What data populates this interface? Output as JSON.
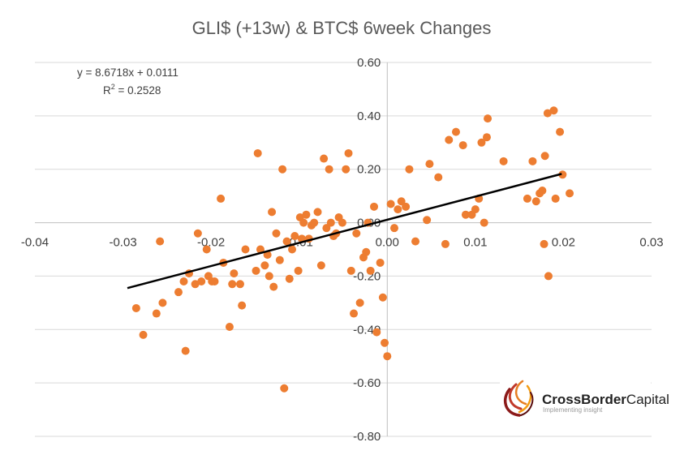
{
  "chart_data": {
    "type": "scatter",
    "title": "GLI$ (+13w) & BTC$ 6week Changes",
    "xlabel": "",
    "ylabel": "",
    "xlim": [
      -0.04,
      0.03
    ],
    "ylim": [
      -0.8,
      0.6
    ],
    "x_ticks": [
      "-0.04",
      "-0.03",
      "-0.02",
      "-0.01",
      "0.00",
      "0.01",
      "0.02",
      "0.03"
    ],
    "y_ticks": [
      "-0.80",
      "-0.60",
      "-0.40",
      "-0.20",
      "0.00",
      "0.20",
      "0.40",
      "0.60"
    ],
    "grid": "horizontal",
    "marker_color": "#ED7D31",
    "trendline_color": "#000000",
    "trendline": {
      "type": "linear",
      "slope": 8.6718,
      "intercept": 0.0111,
      "x_range": [
        -0.0295,
        0.0198
      ],
      "equation_label": "y = 8.6718x + 0.0111",
      "r2_label_prefix": "R",
      "r2_label_sup": "2",
      "r2_label_suffix": " = 0.2528"
    },
    "points": [
      [
        -0.0285,
        -0.32
      ],
      [
        -0.0277,
        -0.42
      ],
      [
        -0.0262,
        -0.34
      ],
      [
        -0.0255,
        -0.3
      ],
      [
        -0.0258,
        -0.07
      ],
      [
        -0.0237,
        -0.26
      ],
      [
        -0.0231,
        -0.22
      ],
      [
        -0.0229,
        -0.48
      ],
      [
        -0.0225,
        -0.19
      ],
      [
        -0.0218,
        -0.23
      ],
      [
        -0.0215,
        -0.04
      ],
      [
        -0.0211,
        -0.22
      ],
      [
        -0.0205,
        -0.1
      ],
      [
        -0.0203,
        -0.2
      ],
      [
        -0.0199,
        -0.22
      ],
      [
        -0.0196,
        -0.22
      ],
      [
        -0.0189,
        0.09
      ],
      [
        -0.0186,
        -0.15
      ],
      [
        -0.0179,
        -0.39
      ],
      [
        -0.0176,
        -0.23
      ],
      [
        -0.0174,
        -0.19
      ],
      [
        -0.0167,
        -0.23
      ],
      [
        -0.0165,
        -0.31
      ],
      [
        -0.0161,
        -0.1
      ],
      [
        -0.0149,
        -0.18
      ],
      [
        -0.0147,
        0.26
      ],
      [
        -0.0144,
        -0.1
      ],
      [
        -0.0139,
        -0.16
      ],
      [
        -0.0136,
        -0.12
      ],
      [
        -0.0134,
        -0.2
      ],
      [
        -0.0131,
        0.04
      ],
      [
        -0.0129,
        -0.24
      ],
      [
        -0.0126,
        -0.04
      ],
      [
        -0.0122,
        -0.14
      ],
      [
        -0.0119,
        0.2
      ],
      [
        -0.0117,
        -0.62
      ],
      [
        -0.0114,
        -0.07
      ],
      [
        -0.0111,
        -0.21
      ],
      [
        -0.0108,
        -0.1
      ],
      [
        -0.0105,
        -0.05
      ],
      [
        -0.0101,
        -0.18
      ],
      [
        -0.0099,
        0.02
      ],
      [
        -0.0097,
        -0.06
      ],
      [
        -0.0095,
        0.0
      ],
      [
        -0.0092,
        0.03
      ],
      [
        -0.0089,
        -0.06
      ],
      [
        -0.0086,
        -0.01
      ],
      [
        -0.0083,
        0.0
      ],
      [
        -0.0079,
        0.04
      ],
      [
        -0.0075,
        -0.16
      ],
      [
        -0.0072,
        0.24
      ],
      [
        -0.0069,
        -0.02
      ],
      [
        -0.0066,
        0.2
      ],
      [
        -0.0064,
        0.0
      ],
      [
        -0.0061,
        -0.05
      ],
      [
        -0.0058,
        -0.04
      ],
      [
        -0.0055,
        0.02
      ],
      [
        -0.0051,
        0.0
      ],
      [
        -0.0047,
        0.2
      ],
      [
        -0.0044,
        0.26
      ],
      [
        -0.0041,
        -0.18
      ],
      [
        -0.0038,
        -0.34
      ],
      [
        -0.0035,
        -0.04
      ],
      [
        -0.0031,
        -0.3
      ],
      [
        -0.0027,
        -0.13
      ],
      [
        -0.0024,
        -0.11
      ],
      [
        -0.0022,
        0.0
      ],
      [
        -0.0019,
        -0.18
      ],
      [
        -0.0015,
        0.06
      ],
      [
        -0.0012,
        -0.41
      ],
      [
        -0.0008,
        -0.15
      ],
      [
        -0.0005,
        -0.28
      ],
      [
        -0.0003,
        -0.45
      ],
      [
        0.0,
        -0.5
      ],
      [
        0.0004,
        0.07
      ],
      [
        0.0008,
        -0.02
      ],
      [
        0.0012,
        0.05
      ],
      [
        0.0016,
        0.08
      ],
      [
        0.0021,
        0.06
      ],
      [
        0.0025,
        0.2
      ],
      [
        0.0032,
        -0.07
      ],
      [
        0.0045,
        0.01
      ],
      [
        0.0048,
        0.22
      ],
      [
        0.0058,
        0.17
      ],
      [
        0.0066,
        -0.08
      ],
      [
        0.007,
        0.31
      ],
      [
        0.0078,
        0.34
      ],
      [
        0.0086,
        0.29
      ],
      [
        0.0089,
        0.03
      ],
      [
        0.0096,
        0.03
      ],
      [
        0.01,
        0.05
      ],
      [
        0.0104,
        0.09
      ],
      [
        0.0107,
        0.3
      ],
      [
        0.011,
        0.0
      ],
      [
        0.0113,
        0.32
      ],
      [
        0.0114,
        0.39
      ],
      [
        0.0132,
        0.23
      ],
      [
        0.0159,
        0.09
      ],
      [
        0.0165,
        0.23
      ],
      [
        0.0169,
        0.08
      ],
      [
        0.0173,
        0.11
      ],
      [
        0.0176,
        0.12
      ],
      [
        0.0178,
        -0.08
      ],
      [
        0.0179,
        0.25
      ],
      [
        0.0182,
        0.41
      ],
      [
        0.0183,
        -0.2
      ],
      [
        0.0189,
        0.42
      ],
      [
        0.0191,
        0.09
      ],
      [
        0.0196,
        0.34
      ],
      [
        0.0199,
        0.18
      ],
      [
        0.0207,
        0.11
      ]
    ]
  },
  "logo": {
    "name_bold": "CrossBorder",
    "name_light": "Capital",
    "tagline": "Implementing insight"
  }
}
